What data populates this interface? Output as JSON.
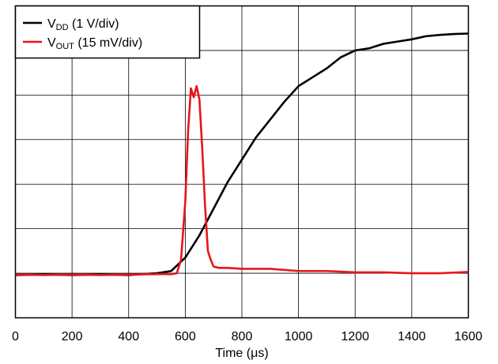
{
  "chart_data": {
    "type": "line",
    "title": "",
    "xlabel": "Time (μs)",
    "ylabel": "",
    "xlim": [
      0,
      1600
    ],
    "ylim": [
      0,
      7
    ],
    "x_ticks": [
      "0",
      "200",
      "400",
      "600",
      "800",
      "1000",
      "1200",
      "1400",
      "1600"
    ],
    "grid": true,
    "legend_position": "top-left",
    "series": [
      {
        "name": "VDD (1 V/div)",
        "label_main": "V",
        "label_sub": "DD",
        "label_rest": " (1 V/div)",
        "color": "#000000",
        "x": [
          0,
          100,
          200,
          300,
          400,
          450,
          500,
          550,
          600,
          650,
          700,
          750,
          800,
          850,
          900,
          950,
          1000,
          1050,
          1100,
          1150,
          1200,
          1250,
          1300,
          1350,
          1400,
          1450,
          1500,
          1550,
          1600
        ],
        "values": [
          0.96,
          0.97,
          0.96,
          0.97,
          0.96,
          0.98,
          1.0,
          1.05,
          1.35,
          1.85,
          2.45,
          3.05,
          3.55,
          4.05,
          4.45,
          4.85,
          5.2,
          5.4,
          5.6,
          5.85,
          6.0,
          6.05,
          6.15,
          6.2,
          6.25,
          6.32,
          6.35,
          6.37,
          6.38
        ]
      },
      {
        "name": "VOUT (15 mV/div)",
        "label_main": "V",
        "label_sub": "OUT",
        "label_rest": " (15 mV/div)",
        "color": "#e8141b",
        "x": [
          0,
          100,
          200,
          300,
          400,
          500,
          550,
          570,
          585,
          600,
          610,
          620,
          630,
          640,
          650,
          660,
          670,
          680,
          690,
          700,
          720,
          750,
          800,
          900,
          1000,
          1100,
          1200,
          1300,
          1400,
          1500,
          1600
        ],
        "values": [
          0.97,
          0.96,
          0.97,
          0.96,
          0.97,
          0.98,
          0.98,
          1.0,
          1.3,
          2.6,
          4.2,
          5.15,
          4.95,
          5.2,
          4.9,
          3.8,
          2.5,
          1.5,
          1.3,
          1.15,
          1.12,
          1.12,
          1.1,
          1.1,
          1.05,
          1.05,
          1.02,
          1.02,
          1.0,
          1.0,
          1.03
        ]
      }
    ]
  }
}
